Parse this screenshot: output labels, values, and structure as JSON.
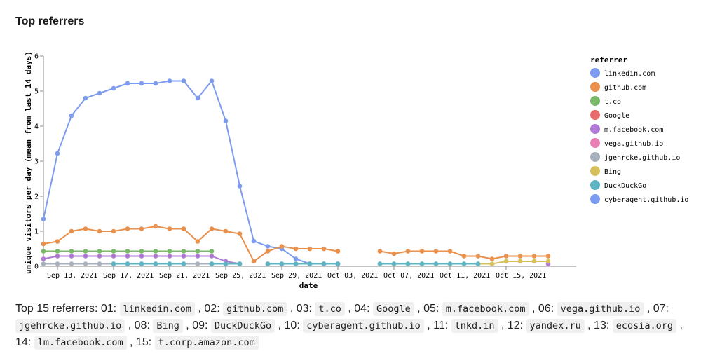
{
  "page": {
    "title": "Top referrers"
  },
  "summary": {
    "prefix": "Top 15 referrers: ",
    "items": [
      {
        "num": "01",
        "name": "linkedin.com"
      },
      {
        "num": "02",
        "name": "github.com"
      },
      {
        "num": "03",
        "name": "t.co"
      },
      {
        "num": "04",
        "name": "Google"
      },
      {
        "num": "05",
        "name": "m.facebook.com"
      },
      {
        "num": "06",
        "name": "vega.github.io"
      },
      {
        "num": "07",
        "name": "jgehrcke.github.io"
      },
      {
        "num": "08",
        "name": "Bing"
      },
      {
        "num": "09",
        "name": "DuckDuckGo"
      },
      {
        "num": "10",
        "name": "cyberagent.github.io"
      },
      {
        "num": "11",
        "name": "lnkd.in"
      },
      {
        "num": "12",
        "name": "yandex.ru"
      },
      {
        "num": "13",
        "name": "ecosia.org"
      },
      {
        "num": "14",
        "name": "lm.facebook.com"
      },
      {
        "num": "15",
        "name": "t.corp.amazon.com"
      }
    ]
  },
  "chart_data": {
    "type": "line",
    "title": "",
    "xlabel": "date",
    "ylabel": "unique visitors per day (mean from last 14 days)",
    "ylim": [
      0,
      6
    ],
    "xlim": [
      "2021-09-12",
      "2021-10-20"
    ],
    "yticks": [
      0,
      1,
      2,
      3,
      4,
      5,
      6
    ],
    "xticks": [
      {
        "date": "2021-09-13",
        "label": "Sep 13, 2021"
      },
      {
        "date": "2021-09-17",
        "label": "Sep 17, 2021"
      },
      {
        "date": "2021-09-21",
        "label": "Sep 21, 2021"
      },
      {
        "date": "2021-09-25",
        "label": "Sep 25, 2021"
      },
      {
        "date": "2021-09-29",
        "label": "Sep 29, 2021"
      },
      {
        "date": "2021-10-03",
        "label": "Oct 03, 2021"
      },
      {
        "date": "2021-10-07",
        "label": "Oct 07, 2021"
      },
      {
        "date": "2021-10-11",
        "label": "Oct 11, 2021"
      },
      {
        "date": "2021-10-15",
        "label": "Oct 15, 2021"
      }
    ],
    "legend": {
      "title": "referrer",
      "position": "right"
    },
    "series": [
      {
        "name": "linkedin.com",
        "color": "#7d9cf0",
        "points": [
          [
            "2021-09-12",
            1.35
          ],
          [
            "2021-09-13",
            3.22
          ],
          [
            "2021-09-14",
            4.3
          ],
          [
            "2021-09-15",
            4.8
          ],
          [
            "2021-09-16",
            4.94
          ],
          [
            "2021-09-17",
            5.08
          ],
          [
            "2021-09-18",
            5.22
          ],
          [
            "2021-09-19",
            5.22
          ],
          [
            "2021-09-20",
            5.22
          ],
          [
            "2021-09-21",
            5.29
          ],
          [
            "2021-09-22",
            5.29
          ],
          [
            "2021-09-23",
            4.8
          ],
          [
            "2021-09-24",
            5.29
          ],
          [
            "2021-09-25",
            4.15
          ],
          [
            "2021-09-26",
            2.29
          ],
          [
            "2021-09-27",
            0.72
          ],
          [
            "2021-09-28",
            0.57
          ],
          [
            "2021-09-29",
            0.5
          ],
          [
            "2021-09-30",
            0.21
          ],
          [
            "2021-10-01",
            0.07
          ],
          [
            "2021-10-02",
            0.07
          ],
          [
            "2021-10-03",
            0.07
          ]
        ]
      },
      {
        "name": "github.com",
        "color": "#e9904c",
        "points": [
          [
            "2021-09-12",
            0.64
          ],
          [
            "2021-09-13",
            0.71
          ],
          [
            "2021-09-14",
            1.0
          ],
          [
            "2021-09-15",
            1.07
          ],
          [
            "2021-09-16",
            1.0
          ],
          [
            "2021-09-17",
            1.0
          ],
          [
            "2021-09-18",
            1.07
          ],
          [
            "2021-09-19",
            1.07
          ],
          [
            "2021-09-20",
            1.14
          ],
          [
            "2021-09-21",
            1.07
          ],
          [
            "2021-09-22",
            1.07
          ],
          [
            "2021-09-23",
            0.71
          ],
          [
            "2021-09-24",
            1.07
          ],
          [
            "2021-09-25",
            1.0
          ],
          [
            "2021-09-26",
            0.93
          ],
          [
            "2021-09-27",
            0.14
          ],
          [
            "2021-09-28",
            0.43
          ],
          [
            "2021-09-29",
            0.57
          ],
          [
            "2021-09-30",
            0.5
          ],
          [
            "2021-10-01",
            0.5
          ],
          [
            "2021-10-02",
            0.5
          ],
          [
            "2021-10-03",
            0.43
          ],
          [
            "2021-10-06",
            0.43
          ],
          [
            "2021-10-07",
            0.36
          ],
          [
            "2021-10-08",
            0.43
          ],
          [
            "2021-10-09",
            0.43
          ],
          [
            "2021-10-10",
            0.43
          ],
          [
            "2021-10-11",
            0.43
          ],
          [
            "2021-10-12",
            0.29
          ],
          [
            "2021-10-13",
            0.29
          ],
          [
            "2021-10-14",
            0.21
          ],
          [
            "2021-10-15",
            0.29
          ],
          [
            "2021-10-16",
            0.29
          ],
          [
            "2021-10-17",
            0.29
          ],
          [
            "2021-10-18",
            0.29
          ]
        ]
      },
      {
        "name": "t.co",
        "color": "#79b96a",
        "points": [
          [
            "2021-09-12",
            0.43
          ],
          [
            "2021-09-13",
            0.43
          ],
          [
            "2021-09-14",
            0.43
          ],
          [
            "2021-09-15",
            0.43
          ],
          [
            "2021-09-16",
            0.43
          ],
          [
            "2021-09-17",
            0.43
          ],
          [
            "2021-09-18",
            0.43
          ],
          [
            "2021-09-19",
            0.43
          ],
          [
            "2021-09-20",
            0.43
          ],
          [
            "2021-09-21",
            0.43
          ],
          [
            "2021-09-22",
            0.43
          ],
          [
            "2021-09-23",
            0.43
          ],
          [
            "2021-09-24",
            0.43
          ]
        ]
      },
      {
        "name": "Google",
        "color": "#e96a6a",
        "points": []
      },
      {
        "name": "m.facebook.com",
        "color": "#b07ad6",
        "points": [
          [
            "2021-09-12",
            0.21
          ],
          [
            "2021-09-13",
            0.29
          ],
          [
            "2021-09-14",
            0.29
          ],
          [
            "2021-09-15",
            0.29
          ],
          [
            "2021-09-16",
            0.29
          ],
          [
            "2021-09-17",
            0.29
          ],
          [
            "2021-09-18",
            0.29
          ],
          [
            "2021-09-19",
            0.29
          ],
          [
            "2021-09-20",
            0.29
          ],
          [
            "2021-09-21",
            0.29
          ],
          [
            "2021-09-22",
            0.29
          ],
          [
            "2021-09-23",
            0.29
          ],
          [
            "2021-09-24",
            0.29
          ],
          [
            "2021-09-25",
            0.14
          ],
          [
            "2021-09-26",
            0.07
          ],
          [
            "2021-09-28",
            0.07
          ],
          [
            "2021-09-29",
            0.07
          ],
          [
            "2021-09-30",
            0.07
          ],
          [
            "2021-10-01",
            0.07
          ],
          [
            "2021-10-02",
            0.07
          ],
          [
            "2021-10-03",
            0.07
          ],
          [
            "2021-10-18",
            0.07
          ]
        ]
      },
      {
        "name": "vega.github.io",
        "color": "#e77fb4",
        "points": []
      },
      {
        "name": "jgehrcke.github.io",
        "color": "#a9b1bd",
        "points": [
          [
            "2021-09-12",
            0.07
          ],
          [
            "2021-09-13",
            0.07
          ],
          [
            "2021-09-14",
            0.07
          ],
          [
            "2021-09-15",
            0.07
          ],
          [
            "2021-09-16",
            0.07
          ],
          [
            "2021-09-17",
            0.07
          ],
          [
            "2021-09-18",
            0.07
          ],
          [
            "2021-09-19",
            0.07
          ],
          [
            "2021-09-20",
            0.07
          ],
          [
            "2021-09-21",
            0.07
          ],
          [
            "2021-09-22",
            0.07
          ],
          [
            "2021-09-23",
            0.07
          ],
          [
            "2021-09-24",
            0.07
          ],
          [
            "2021-09-25",
            0.07
          ],
          [
            "2021-09-26",
            0.07
          ]
        ]
      },
      {
        "name": "Bing",
        "color": "#d6c05c",
        "points": [
          [
            "2021-10-06",
            0.07
          ],
          [
            "2021-10-07",
            0.07
          ],
          [
            "2021-10-08",
            0.07
          ],
          [
            "2021-10-09",
            0.07
          ],
          [
            "2021-10-10",
            0.07
          ],
          [
            "2021-10-11",
            0.07
          ],
          [
            "2021-10-12",
            0.07
          ],
          [
            "2021-10-13",
            0.07
          ],
          [
            "2021-10-14",
            0.07
          ],
          [
            "2021-10-15",
            0.14
          ],
          [
            "2021-10-16",
            0.14
          ],
          [
            "2021-10-17",
            0.14
          ],
          [
            "2021-10-18",
            0.14
          ]
        ]
      },
      {
        "name": "DuckDuckGo",
        "color": "#5eb4c2",
        "points": [
          [
            "2021-09-17",
            0.07
          ],
          [
            "2021-09-18",
            0.07
          ],
          [
            "2021-09-19",
            0.07
          ],
          [
            "2021-09-20",
            0.07
          ],
          [
            "2021-09-21",
            0.07
          ],
          [
            "2021-09-22",
            0.07
          ],
          [
            "2021-09-24",
            0.07
          ],
          [
            "2021-09-25",
            0.07
          ],
          [
            "2021-09-26",
            0.07
          ],
          [
            "2021-09-28",
            0.07
          ],
          [
            "2021-09-29",
            0.07
          ],
          [
            "2021-09-30",
            0.07
          ],
          [
            "2021-10-01",
            0.07
          ],
          [
            "2021-10-02",
            0.07
          ],
          [
            "2021-10-03",
            0.07
          ],
          [
            "2021-10-06",
            0.07
          ],
          [
            "2021-10-07",
            0.07
          ],
          [
            "2021-10-08",
            0.07
          ],
          [
            "2021-10-09",
            0.07
          ],
          [
            "2021-10-10",
            0.07
          ],
          [
            "2021-10-11",
            0.07
          ],
          [
            "2021-10-12",
            0.07
          ],
          [
            "2021-10-13",
            0.07
          ]
        ]
      },
      {
        "name": "cyberagent.github.io",
        "color": "#7d9cf0",
        "points": []
      }
    ]
  }
}
